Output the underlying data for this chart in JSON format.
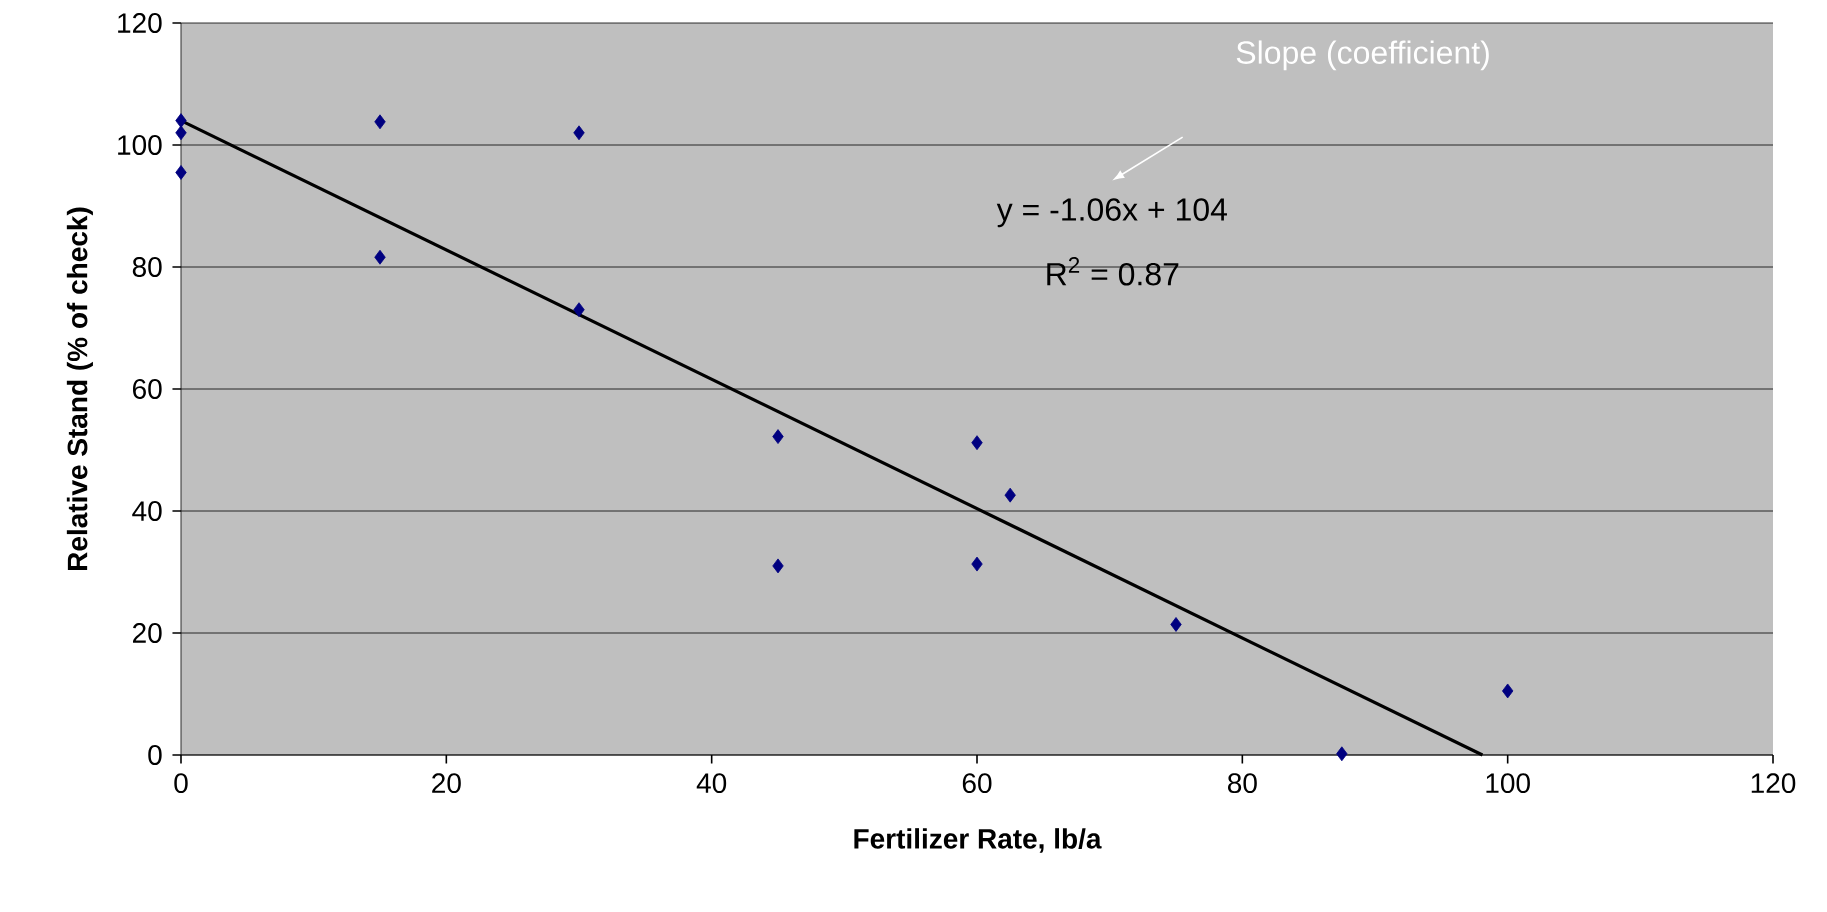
{
  "chart_data": {
    "type": "scatter",
    "xlabel": "Fertilizer Rate, lb/a",
    "ylabel": "Relative Stand (% of check)",
    "xlim": [
      0,
      120
    ],
    "ylim": [
      0,
      120
    ],
    "xticks": [
      0,
      20,
      40,
      60,
      80,
      100,
      120
    ],
    "yticks": [
      0,
      20,
      40,
      60,
      80,
      100,
      120
    ],
    "grid": "y",
    "marker": "diamond",
    "annotations": [
      "Slope (coefficient)",
      "y = -1.06x + 104",
      "R$^{2}$ = 0.87"
    ],
    "series": [
      {
        "color": "#000080",
        "x": [
          0,
          0,
          0,
          15,
          15,
          30,
          30,
          45,
          45,
          60,
          60,
          62.5,
          75,
          87.5,
          100
        ],
        "values": [
          104,
          102,
          95.5,
          103.8,
          81.6,
          102,
          73,
          52.2,
          31,
          51.2,
          31.3,
          42.6,
          21.4,
          0.2,
          10.5
        ]
      },
      {
        "type": "line",
        "color": "#000000",
        "marker": "none",
        "x": [
          0,
          98.1
        ],
        "values": [
          104,
          0
        ]
      }
    ]
  }
}
